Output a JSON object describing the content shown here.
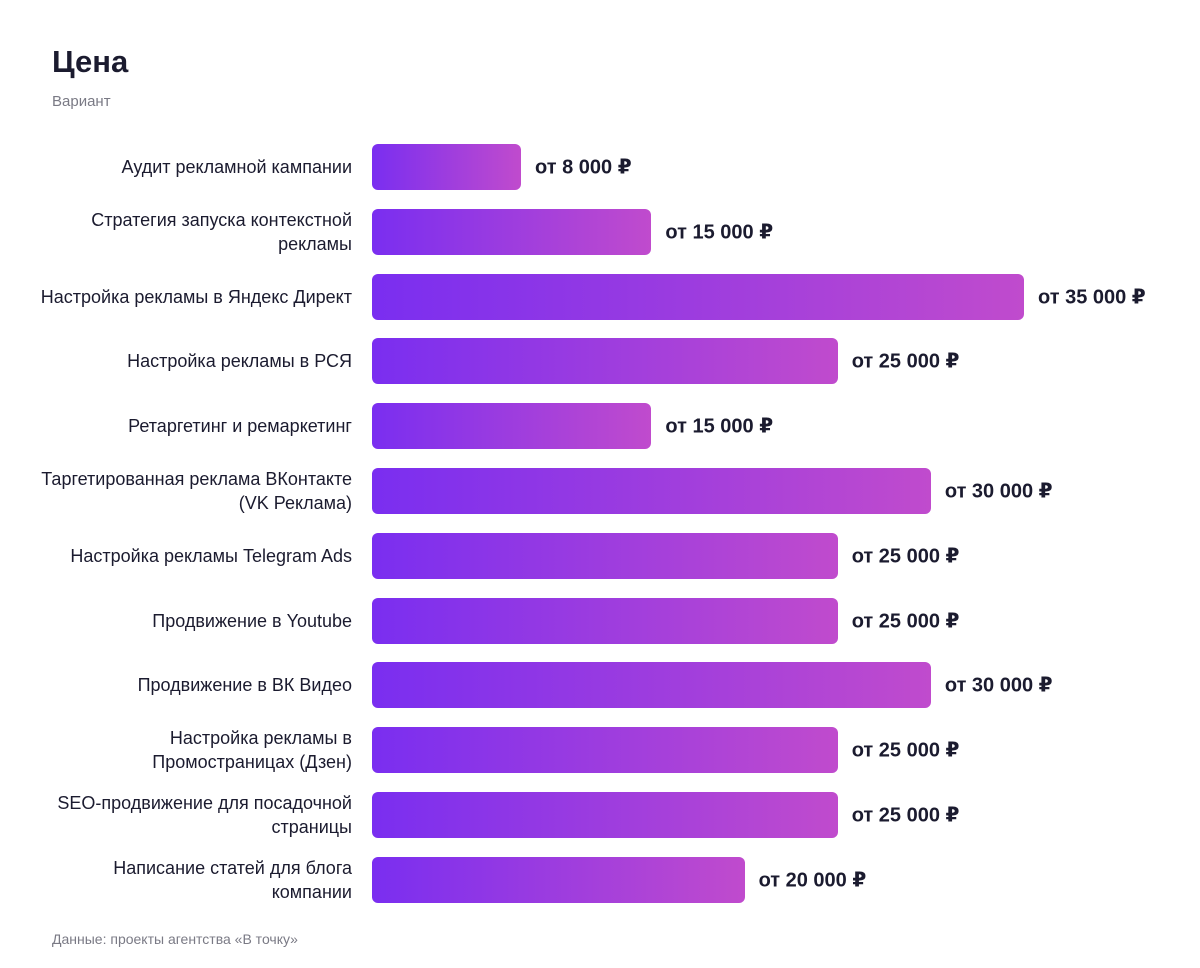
{
  "chart_data": {
    "type": "bar",
    "orientation": "horizontal",
    "title": "Цена",
    "subtitle": "Вариант",
    "source": "Данные: проекты агентства «В точку»",
    "categories": [
      "Аудит рекламной кампании",
      "Стратегия запуска контекстной рекламы",
      "Настройка рекламы в Яндекс Директ",
      "Настройка рекламы в РСЯ",
      "Ретаргетинг и ремаркетинг",
      "Таргетированная реклама ВКонтакте (VK Реклама)",
      "Настройка рекламы Telegram Ads",
      "Продвижение в Youtube",
      "Продвижение в ВК Видео",
      "Настройка рекламы в Промостраницах (Дзен)",
      "SEO-продвижение для посадочной страницы",
      "Написание статей для блога компании"
    ],
    "values": [
      8000,
      15000,
      35000,
      25000,
      15000,
      30000,
      25000,
      25000,
      30000,
      25000,
      25000,
      20000
    ],
    "value_labels": [
      "от 8 000 ₽",
      "от 15 000 ₽",
      "от 35 000 ₽",
      "от 25 000 ₽",
      "от 15 000 ₽",
      "от 30 000 ₽",
      "от 25 000 ₽",
      "от 25 000 ₽",
      "от 30 000 ₽",
      "от 25 000 ₽",
      "от 25 000 ₽",
      "от 20 000 ₽"
    ],
    "colors": [
      "#7a2ef0",
      "#c04bcd"
    ]
  }
}
